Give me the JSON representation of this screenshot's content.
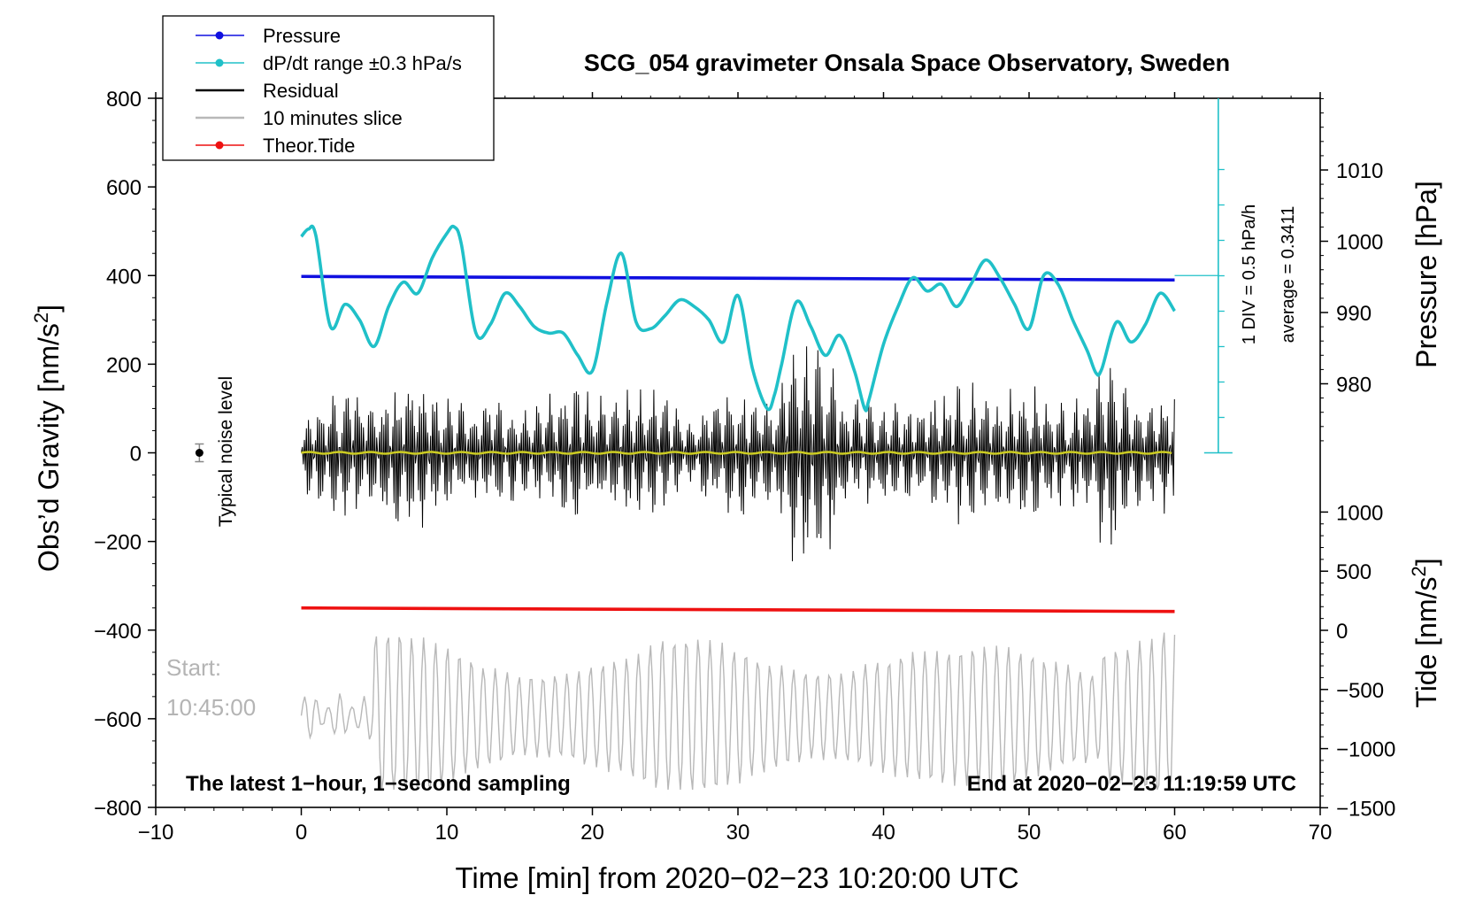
{
  "chart_data": {
    "type": "line",
    "title": "SCG_054 gravimeter Onsala Space Observatory, Sweden",
    "xlabel": "Time [min] from 2020−02−23 10:20:00 UTC",
    "ylabel_left": "Obs’d Gravity [nm/s²]",
    "ylabel_right_pressure": "Pressure [hPa]",
    "ylabel_right_tide": "Tide [nm/s²]",
    "xlim": [
      -10,
      70
    ],
    "ylim": [
      -800,
      800
    ],
    "x_ticks": [
      "−10",
      "0",
      "10",
      "20",
      "30",
      "40",
      "50",
      "60",
      "70"
    ],
    "y_ticks": [
      "800",
      "600",
      "400",
      "200",
      "0",
      "−200",
      "−400",
      "−600",
      "−800"
    ],
    "pressure_ticks": [
      "1010",
      "1000",
      "990",
      "980"
    ],
    "tide_ticks": [
      "1000",
      "500",
      "0",
      "−500",
      "−1000",
      "−1500"
    ],
    "legend": [
      {
        "label": "Pressure",
        "color": "#1010e0",
        "marker": true
      },
      {
        "label": "dP/dt range ±0.3 hPa/s",
        "color": "#20c0c8",
        "marker": true
      },
      {
        "label": "Residual",
        "color": "#000000",
        "marker": false
      },
      {
        "label": "10 minutes slice",
        "color": "#b8b8b8",
        "marker": false
      },
      {
        "label": "Theor.Tide",
        "color": "#ee1111",
        "marker": true
      }
    ],
    "annotations": {
      "noise": "Typical noise level",
      "scale_div": "1 DIV = 0.5 hPa/h",
      "scale_avg": "average = 0.3411",
      "start_label": "Start:",
      "start_time": "10:45:00",
      "bottom_left": "The latest 1−hour, 1−second sampling",
      "bottom_right": "End at 2020−02−23 11:19:59 UTC"
    },
    "series": [
      {
        "name": "Pressure",
        "color": "#1010e0",
        "x": [
          0,
          60
        ],
        "y": [
          398,
          390
        ]
      },
      {
        "name": "Theor.Tide",
        "color": "#ee1111",
        "x": [
          0,
          60
        ],
        "y": [
          -350,
          -358
        ]
      },
      {
        "name": "dP/dt range",
        "color": "#20c0c8",
        "x": [
          0,
          0.5,
          1,
          2,
          3,
          4,
          5,
          6,
          7,
          8,
          9,
          10,
          10.5,
          11,
          12,
          13,
          14,
          15,
          16,
          17,
          18,
          19,
          20,
          21,
          22,
          23,
          24,
          25,
          26,
          27,
          28,
          29,
          30,
          31,
          32,
          32.5,
          33,
          34,
          35,
          36,
          37,
          38,
          38.7,
          39,
          40,
          41,
          42,
          43,
          44,
          45,
          46,
          47,
          48,
          49,
          50,
          51,
          52,
          53,
          54,
          54.6,
          55,
          56,
          57,
          58,
          59,
          60
        ],
        "y": [
          488,
          505,
          490,
          285,
          335,
          300,
          240,
          330,
          385,
          360,
          440,
          495,
          510,
          470,
          270,
          290,
          360,
          330,
          285,
          270,
          270,
          220,
          185,
          340,
          450,
          295,
          280,
          310,
          345,
          330,
          300,
          250,
          355,
          190,
          100,
          130,
          200,
          340,
          285,
          220,
          265,
          185,
          100,
          120,
          245,
          330,
          395,
          365,
          380,
          330,
          380,
          435,
          395,
          335,
          280,
          400,
          380,
          300,
          230,
          180,
          190,
          295,
          250,
          290,
          360,
          320
        ]
      },
      {
        "name": "Residual",
        "color": "#000000",
        "x_range": [
          0,
          60
        ],
        "y_range": [
          -300,
          240
        ]
      },
      {
        "name": "10 minutes slice",
        "color": "#b8b8b8",
        "x_range": [
          0,
          60
        ],
        "y_range": [
          -750,
          -380
        ]
      }
    ]
  }
}
